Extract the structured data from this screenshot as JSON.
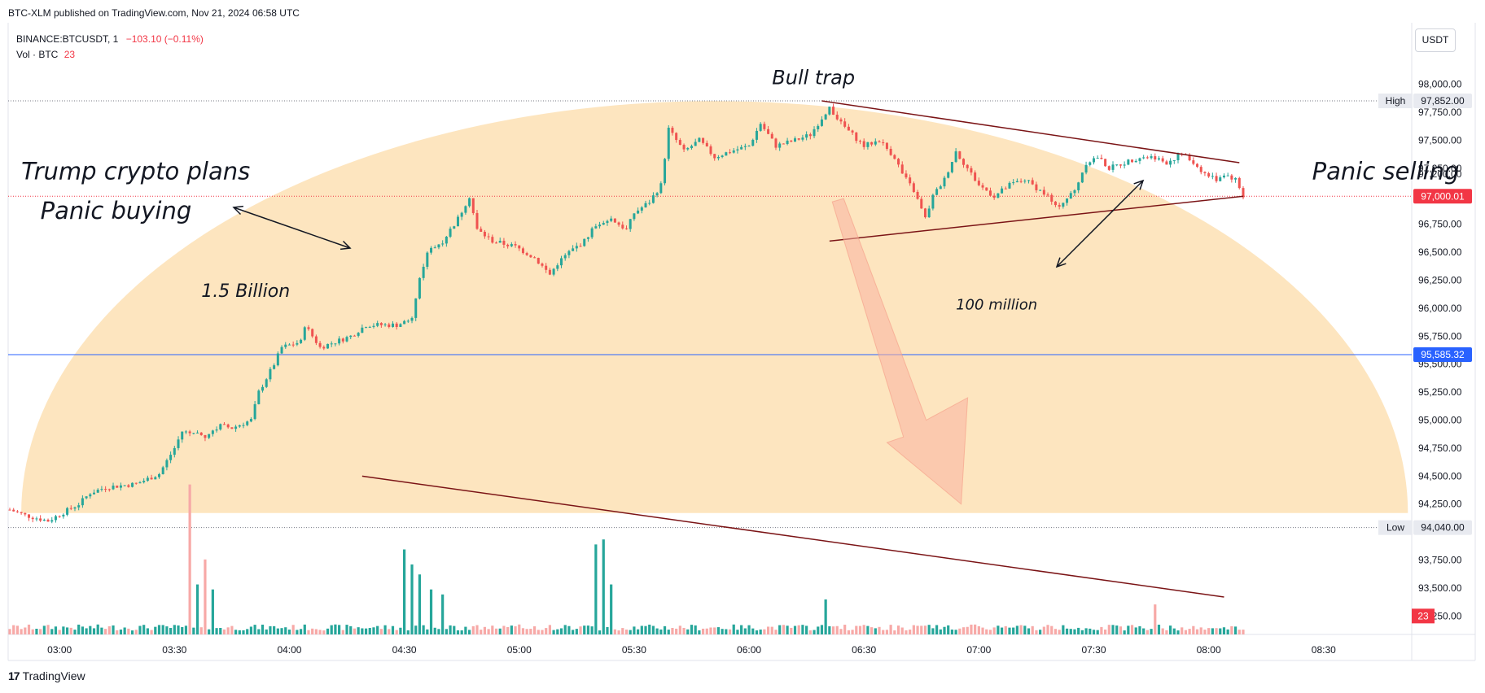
{
  "header": {
    "published": "BTC-XLM published on TradingView.com, Nov 21, 2024 06:58 UTC",
    "symbol": "BINANCE:BTCUSDT, 1",
    "change": "−103.10 (−0.11%)",
    "volume_label": "Vol · BTC",
    "volume_value": "23",
    "currency": "USDT"
  },
  "footer": {
    "logo_mark": "17",
    "logo_text": "TradingView"
  },
  "colors": {
    "up": "#26a69a",
    "down": "#ef5350",
    "up_vol": "#26a69a",
    "down_vol": "#f7a9a7",
    "arc_fill": "#fde0b4",
    "trend": "#7b1416",
    "price_tag": "#f23645",
    "blue_line": "#2962ff",
    "arrow": "#f9b3a0"
  },
  "chart_data": {
    "type": "candlestick",
    "title": "",
    "ylabel": "",
    "xlabel": "",
    "ylim": [
      93100,
      98230
    ],
    "y_ticks": [
      "98,000.00",
      "97,750.00",
      "97,500.00",
      "97,250.00",
      "97,200.00",
      "96,750.00",
      "96,500.00",
      "96,250.00",
      "96,000.00",
      "95,750.00",
      "95,500.00",
      "95,250.00",
      "95,000.00",
      "94,750.00",
      "94,500.00",
      "94,250.00",
      "93,750.00",
      "93,500.00",
      "93,250.00"
    ],
    "y_tick_values": [
      98000,
      97750,
      97500,
      97250,
      97200,
      96750,
      96500,
      96250,
      96000,
      95750,
      95500,
      95250,
      95000,
      94750,
      94500,
      94250,
      93750,
      93500,
      93250
    ],
    "x_ticks": [
      "03:00",
      "03:30",
      "04:00",
      "04:30",
      "05:00",
      "05:30",
      "06:00",
      "06:30",
      "07:00",
      "07:30",
      "08:00",
      "08:30"
    ],
    "x_tick_minutes": [
      0,
      30,
      60,
      90,
      120,
      150,
      180,
      210,
      240,
      270,
      300,
      330
    ],
    "x_range_minutes": [
      -13,
      353
    ],
    "price_tags": [
      {
        "label": "High",
        "value": "97,852.00",
        "price": 97852
      },
      {
        "label": "Low",
        "value": "94,040.00",
        "price": 94040
      },
      {
        "label": "",
        "value": "97,000.01",
        "price": 97000.01
      },
      {
        "label": "",
        "value": "95,585.32",
        "price": 95585.32
      },
      {
        "label": "",
        "value": "23",
        "price": 93250
      }
    ],
    "anchors": [
      [
        -13,
        94200
      ],
      [
        -9,
        94150
      ],
      [
        -3,
        94100
      ],
      [
        5,
        94250
      ],
      [
        8,
        94350
      ],
      [
        12,
        94400
      ],
      [
        20,
        94430
      ],
      [
        26,
        94520
      ],
      [
        30,
        94750
      ],
      [
        32,
        94900
      ],
      [
        38,
        94850
      ],
      [
        42,
        94950
      ],
      [
        45,
        94930
      ],
      [
        50,
        95000
      ],
      [
        52,
        95250
      ],
      [
        56,
        95500
      ],
      [
        58,
        95650
      ],
      [
        63,
        95700
      ],
      [
        64,
        95850
      ],
      [
        68,
        95650
      ],
      [
        72,
        95700
      ],
      [
        76,
        95750
      ],
      [
        80,
        95850
      ],
      [
        88,
        95850
      ],
      [
        92,
        95900
      ],
      [
        94,
        96250
      ],
      [
        96,
        96500
      ],
      [
        100,
        96600
      ],
      [
        104,
        96800
      ],
      [
        107,
        97000
      ],
      [
        109,
        96700
      ],
      [
        113,
        96600
      ],
      [
        119,
        96550
      ],
      [
        124,
        96450
      ],
      [
        128,
        96300
      ],
      [
        130,
        96400
      ],
      [
        133,
        96500
      ],
      [
        137,
        96600
      ],
      [
        140,
        96750
      ],
      [
        144,
        96800
      ],
      [
        148,
        96700
      ],
      [
        150,
        96850
      ],
      [
        154,
        96950
      ],
      [
        157,
        97100
      ],
      [
        159,
        97600
      ],
      [
        163,
        97400
      ],
      [
        167,
        97500
      ],
      [
        171,
        97350
      ],
      [
        175,
        97400
      ],
      [
        180,
        97450
      ],
      [
        183,
        97650
      ],
      [
        187,
        97450
      ],
      [
        192,
        97500
      ],
      [
        196,
        97550
      ],
      [
        199,
        97700
      ],
      [
        201,
        97800
      ],
      [
        204,
        97650
      ],
      [
        207,
        97550
      ],
      [
        210,
        97450
      ],
      [
        214,
        97500
      ],
      [
        218,
        97350
      ],
      [
        220,
        97200
      ],
      [
        223,
        97050
      ],
      [
        226,
        96800
      ],
      [
        228,
        97000
      ],
      [
        231,
        97150
      ],
      [
        234,
        97400
      ],
      [
        237,
        97250
      ],
      [
        240,
        97100
      ],
      [
        244,
        97000
      ],
      [
        248,
        97100
      ],
      [
        252,
        97150
      ],
      [
        256,
        97050
      ],
      [
        258,
        97000
      ],
      [
        260,
        96900
      ],
      [
        262,
        96950
      ],
      [
        265,
        97050
      ],
      [
        268,
        97300
      ],
      [
        271,
        97350
      ],
      [
        274,
        97250
      ],
      [
        278,
        97300
      ],
      [
        282,
        97350
      ],
      [
        286,
        97350
      ],
      [
        289,
        97300
      ],
      [
        293,
        97380
      ],
      [
        296,
        97300
      ],
      [
        299,
        97200
      ],
      [
        302,
        97150
      ],
      [
        304,
        97200
      ],
      [
        307,
        97150
      ],
      [
        309,
        97000
      ]
    ],
    "vol_ylim": [
      0,
      3100
    ],
    "vol_spikes": [
      [
        34,
        3000
      ],
      [
        36,
        1000
      ],
      [
        38,
        1500
      ],
      [
        40,
        900
      ],
      [
        90,
        1700
      ],
      [
        92,
        1400
      ],
      [
        94,
        1200
      ],
      [
        97,
        900
      ],
      [
        100,
        800
      ],
      [
        140,
        1800
      ],
      [
        142,
        1900
      ],
      [
        144,
        1000
      ],
      [
        200,
        700
      ],
      [
        286,
        600
      ]
    ],
    "trendlines": [
      {
        "from": [
          199,
          97852
        ],
        "to": [
          308,
          97300
        ]
      },
      {
        "from": [
          201,
          96600
        ],
        "to": [
          309,
          97000
        ]
      },
      {
        "from": [
          79,
          94500
        ],
        "to": [
          304,
          93420
        ]
      }
    ],
    "horizontal_lines": [
      97852,
      94040,
      97000.01,
      95585.32
    ],
    "annotations": [
      {
        "text": "Bull trap",
        "x": 186,
        "y": 98000,
        "size": 24
      },
      {
        "text": "Trump crypto plans",
        "x": -10,
        "y": 97150,
        "size": 29
      },
      {
        "text": "Panic buying",
        "x": -5,
        "y": 96800,
        "size": 29
      },
      {
        "text": "1.5 Billion",
        "x": 37,
        "y": 96100,
        "size": 22
      },
      {
        "text": "100 million",
        "x": 234,
        "y": 95990,
        "size": 18
      },
      {
        "text": "Panic selling",
        "x": 327,
        "y": 97150,
        "size": 29
      }
    ]
  }
}
